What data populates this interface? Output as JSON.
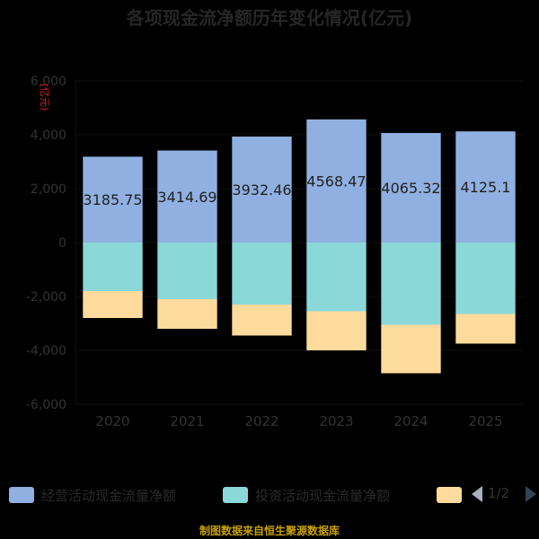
{
  "chart_data": {
    "type": "bar",
    "stacked": true,
    "title": "各项现金流净额历年变化情况(亿元)",
    "ylabel": "(亿元)",
    "ylim": [
      -6000,
      6000
    ],
    "yticks": [
      -6000,
      -4000,
      -2000,
      0,
      2000,
      4000,
      6000
    ],
    "ytick_labels": [
      "-6,000",
      "-4,000",
      "-2,000",
      "0",
      "2,000",
      "4,000",
      "6,000"
    ],
    "grid": true,
    "legend_position": "bottom",
    "categories": [
      "2020",
      "2021",
      "2022",
      "2023",
      "2024",
      "2025"
    ],
    "series": [
      {
        "name": "经营活动现金流量净额",
        "color": "#8fb0e0",
        "values": [
          3185.75,
          3414.69,
          3932.46,
          4568.47,
          4065.32,
          4125.1
        ],
        "labels": [
          "3185.75",
          "3414.69",
          "3932.46",
          "4568.47",
          "4065.32",
          "4125.1"
        ]
      },
      {
        "name": "投资活动现金流量净额",
        "color": "#8ad8d8",
        "values": [
          -1800,
          -2100,
          -2300,
          -2550,
          -3050,
          -2650
        ]
      },
      {
        "name": "",
        "color": "#fddb9c",
        "values": [
          -1000,
          -1100,
          -1150,
          -1450,
          -1800,
          -1100
        ]
      }
    ]
  },
  "legend": {
    "page_indicator": "1/2"
  },
  "footer": {
    "source": "制图数据来自恒生聚源数据库"
  }
}
